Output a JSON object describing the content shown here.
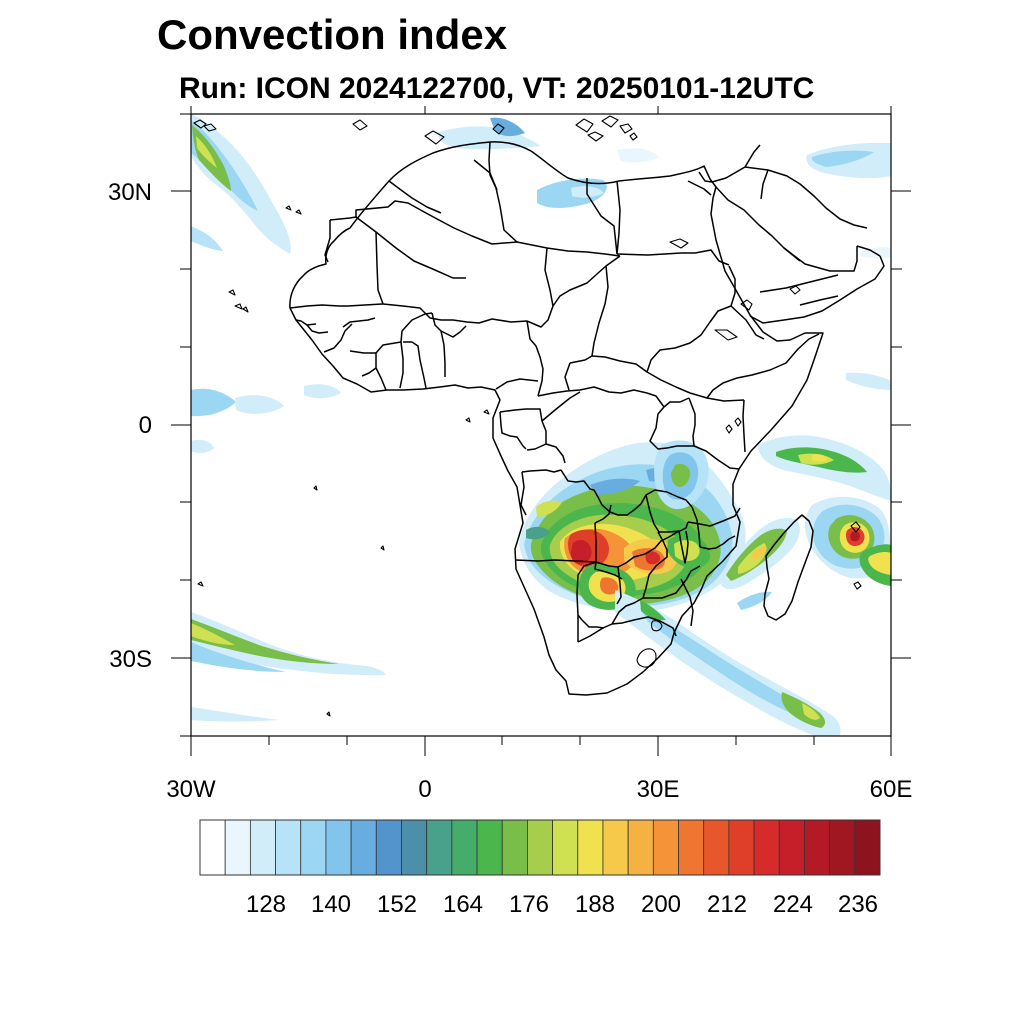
{
  "title": "Convection index",
  "subtitle": "Run: ICON 2024122700,  VT: 20250101-12UTC",
  "x_axis_labels": [
    "30W",
    "0",
    "30E",
    "60E"
  ],
  "y_axis_labels": [
    "30N",
    "0",
    "30S"
  ],
  "colorbar": {
    "labels": [
      "128",
      "140",
      "152",
      "164",
      "176",
      "188",
      "200",
      "212",
      "224",
      "236"
    ],
    "colors": [
      "#ffffff",
      "#eaf6fd",
      "#d0edf9",
      "#b6e3f7",
      "#9bd7f3",
      "#82c5ec",
      "#67addf",
      "#5294cb",
      "#4b8fa8",
      "#4aa18b",
      "#45ad69",
      "#4bb64b",
      "#78be49",
      "#a6cd4c",
      "#cfe051",
      "#f0e24f",
      "#f6c94a",
      "#f5b142",
      "#f49338",
      "#ef7631",
      "#e8572b",
      "#df3f28",
      "#d52b2a",
      "#c71f2a",
      "#b41a26",
      "#a01722",
      "#8d141f"
    ]
  },
  "map": {
    "projection": "plate-carree",
    "lon_range": [
      -30,
      60
    ],
    "lat_range": [
      -40,
      40
    ],
    "ticks_lon": [
      -30,
      -20,
      -10,
      0,
      10,
      20,
      30,
      40,
      50,
      60
    ],
    "ticks_lat": [
      -40,
      -30,
      -20,
      -10,
      0,
      10,
      20,
      30,
      40
    ],
    "convection_regions": [
      {
        "name": "southern-africa-core",
        "lon": [
          13,
          35
        ],
        "lat": [
          -21,
          -4
        ],
        "peak_color": "#d52b2a"
      },
      {
        "name": "east-africa-lakes",
        "lon": [
          30,
          36
        ],
        "lat": [
          -8,
          1
        ],
        "peak_color": "#78be49"
      },
      {
        "name": "madagascar-channel",
        "lon": [
          40,
          49
        ],
        "lat": [
          -22,
          -11
        ],
        "peak_color": "#f6c94a"
      },
      {
        "name": "tropical-cyclone-indian-ocean",
        "lon": [
          52,
          60
        ],
        "lat": [
          -19,
          -5
        ],
        "peak_color": "#d52b2a"
      },
      {
        "name": "north-atlantic-band",
        "lon": [
          -30,
          -23
        ],
        "lat": [
          20,
          40
        ],
        "peak_color": "#cfe051"
      },
      {
        "name": "south-atlantic-band",
        "lon": [
          -30,
          -5
        ],
        "lat": [
          -33,
          -25
        ],
        "peak_color": "#78be49"
      },
      {
        "name": "southwest-indian-ocean-band",
        "lon": [
          32,
          54
        ],
        "lat": [
          -38,
          -26
        ],
        "peak_color": "#f6c94a"
      },
      {
        "name": "mediterranean-streaks",
        "lon": [
          2,
          23
        ],
        "lat": [
          30,
          40
        ],
        "peak_color": "#82c5ec"
      },
      {
        "name": "arabian-sea-streak",
        "lon": [
          50,
          60
        ],
        "lat": [
          32,
          37
        ],
        "peak_color": "#9bd7f3"
      }
    ]
  }
}
